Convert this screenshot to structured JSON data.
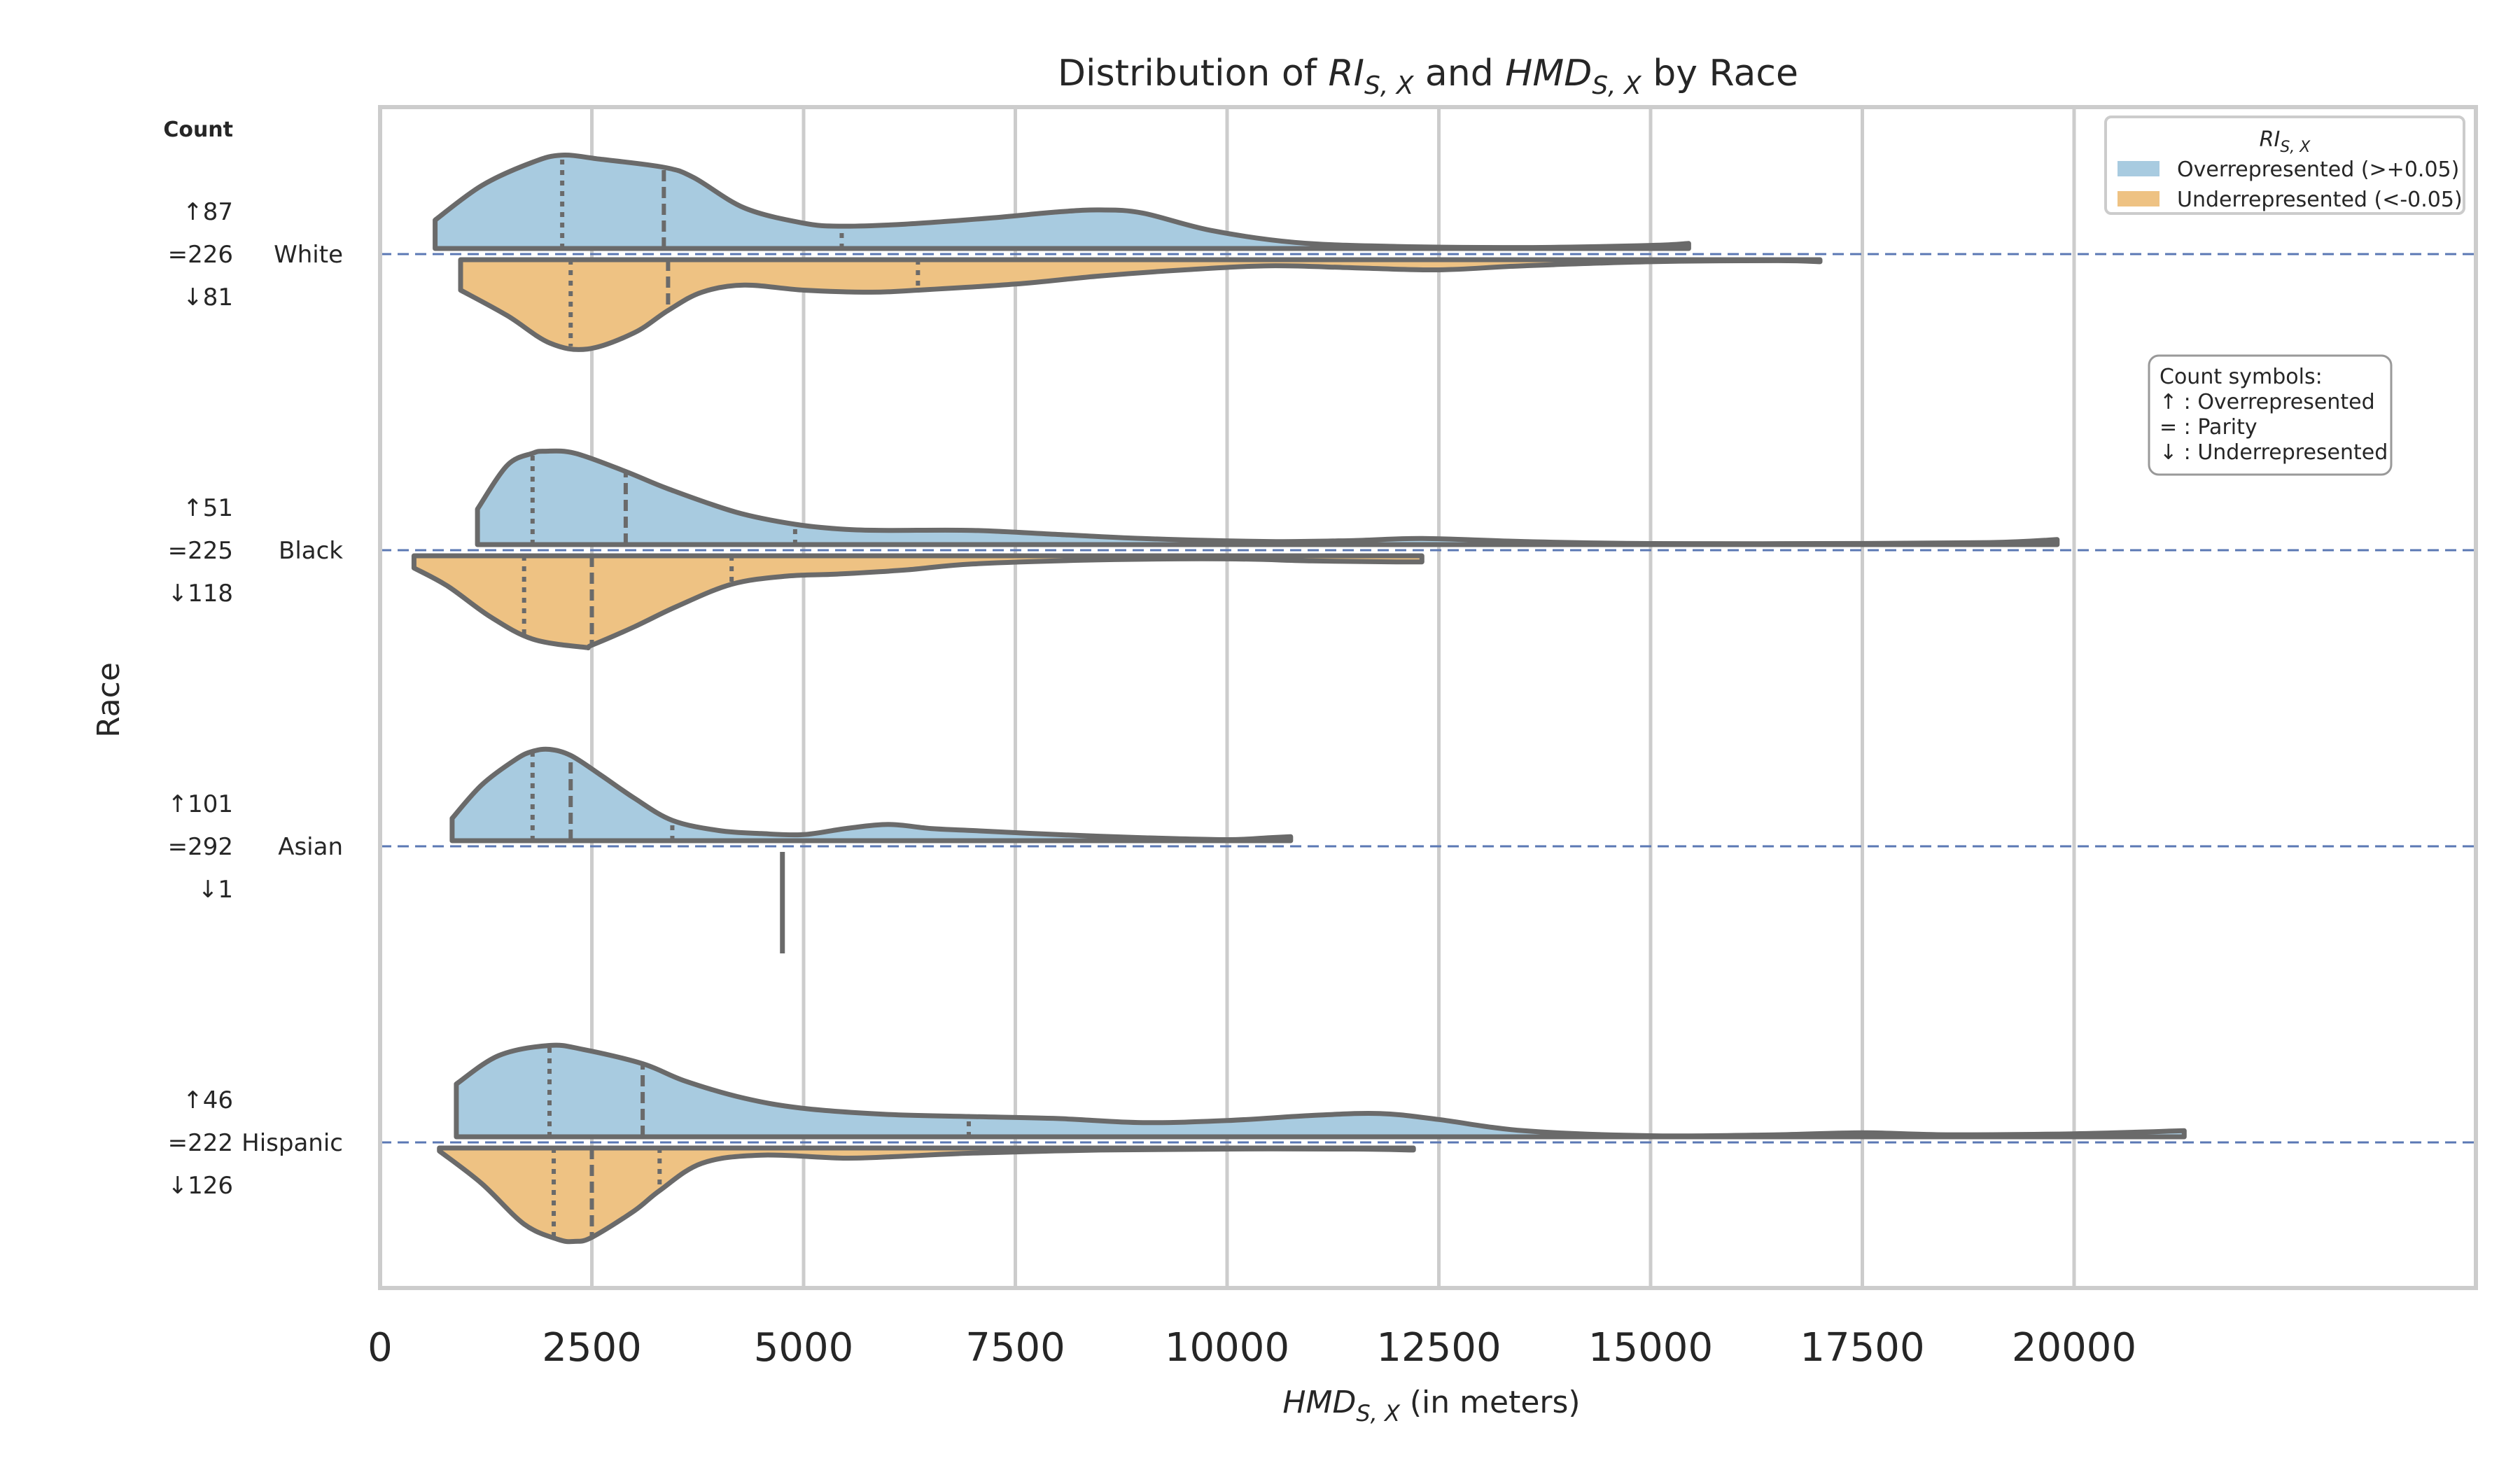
{
  "chart_data": {
    "type": "violin",
    "title": "Distribution of RI_{S,X} and HMD_{S,X} by Race",
    "title_parts": {
      "prefix": "Distribution of ",
      "var1": "RI",
      "var1_sub": "S, X",
      "mid": " and ",
      "var2": "HMD",
      "var2_sub": "S, X",
      "suffix": " by Race"
    },
    "xlabel": {
      "var": "HMD",
      "sub": "S, X",
      "suffix": " (in meters)"
    },
    "ylabel": "Race",
    "xlim": [
      0,
      22400
    ],
    "xticks": [
      0,
      2500,
      5000,
      7500,
      10000,
      12500,
      15000,
      17500,
      20000
    ],
    "grid": "vertical",
    "count_header": "Count",
    "categories": [
      "White",
      "Black",
      "Asian",
      "Hispanic"
    ],
    "counts": [
      {
        "up": "↑87",
        "eq": "=226",
        "down": "↓81"
      },
      {
        "up": "↑51",
        "eq": "=225",
        "down": "↓118"
      },
      {
        "up": "↑101",
        "eq": "=292",
        "down": "↓1"
      },
      {
        "up": "↑46",
        "eq": "=222",
        "down": "↓126"
      }
    ],
    "series": [
      {
        "name": "Overrepresented (>+0.05)",
        "color": "#a8cbe0",
        "side": "upper",
        "groups": [
          {
            "category": "White",
            "min": 650,
            "max": 15450,
            "quartiles": [
              2150,
              3350,
              5450
            ],
            "density": [
              [
                650,
                0.28
              ],
              [
                1200,
                0.62
              ],
              [
                1800,
                0.85
              ],
              [
                2150,
                0.92
              ],
              [
                2600,
                0.88
              ],
              [
                3350,
                0.8
              ],
              [
                3700,
                0.7
              ],
              [
                4300,
                0.4
              ],
              [
                5000,
                0.25
              ],
              [
                5450,
                0.22
              ],
              [
                6200,
                0.24
              ],
              [
                7200,
                0.3
              ],
              [
                8000,
                0.36
              ],
              [
                8500,
                0.38
              ],
              [
                9000,
                0.35
              ],
              [
                9800,
                0.18
              ],
              [
                10800,
                0.06
              ],
              [
                12000,
                0.02
              ],
              [
                13500,
                0.01
              ],
              [
                15000,
                0.03
              ],
              [
                15450,
                0.05
              ]
            ]
          },
          {
            "category": "Black",
            "min": 1150,
            "max": 19800,
            "quartiles": [
              1800,
              2900,
              4900
            ],
            "density": [
              [
                1150,
                0.35
              ],
              [
                1500,
                0.78
              ],
              [
                1800,
                0.9
              ],
              [
                1950,
                0.92
              ],
              [
                2300,
                0.9
              ],
              [
                2900,
                0.72
              ],
              [
                3400,
                0.55
              ],
              [
                4200,
                0.32
              ],
              [
                4900,
                0.2
              ],
              [
                5500,
                0.15
              ],
              [
                6000,
                0.14
              ],
              [
                7000,
                0.14
              ],
              [
                8000,
                0.1
              ],
              [
                9000,
                0.06
              ],
              [
                10500,
                0.03
              ],
              [
                11500,
                0.04
              ],
              [
                12300,
                0.06
              ],
              [
                13500,
                0.03
              ],
              [
                15000,
                0.01
              ],
              [
                17000,
                0.01
              ],
              [
                19000,
                0.02
              ],
              [
                19800,
                0.05
              ]
            ]
          },
          {
            "category": "Asian",
            "min": 850,
            "max": 10750,
            "quartiles": [
              1800,
              2250,
              3450
            ],
            "density": [
              [
                850,
                0.22
              ],
              [
                1200,
                0.55
              ],
              [
                1600,
                0.8
              ],
              [
                1800,
                0.88
              ],
              [
                2000,
                0.9
              ],
              [
                2250,
                0.84
              ],
              [
                2600,
                0.65
              ],
              [
                3000,
                0.42
              ],
              [
                3450,
                0.2
              ],
              [
                4000,
                0.1
              ],
              [
                4500,
                0.07
              ],
              [
                5000,
                0.06
              ],
              [
                5500,
                0.12
              ],
              [
                6000,
                0.16
              ],
              [
                6500,
                0.12
              ],
              [
                7000,
                0.1
              ],
              [
                8000,
                0.06
              ],
              [
                9000,
                0.03
              ],
              [
                10000,
                0.01
              ],
              [
                10500,
                0.03
              ],
              [
                10750,
                0.04
              ]
            ]
          },
          {
            "category": "Hispanic",
            "min": 900,
            "max": 21300,
            "quartiles": [
              2000,
              3100,
              6950
            ],
            "density": [
              [
                900,
                0.52
              ],
              [
                1400,
                0.8
              ],
              [
                2000,
                0.9
              ],
              [
                2400,
                0.86
              ],
              [
                3100,
                0.72
              ],
              [
                3600,
                0.55
              ],
              [
                4300,
                0.38
              ],
              [
                5000,
                0.28
              ],
              [
                6000,
                0.22
              ],
              [
                6950,
                0.2
              ],
              [
                8000,
                0.18
              ],
              [
                9000,
                0.14
              ],
              [
                10000,
                0.16
              ],
              [
                11000,
                0.21
              ],
              [
                11800,
                0.23
              ],
              [
                12500,
                0.17
              ],
              [
                13500,
                0.06
              ],
              [
                15000,
                0.01
              ],
              [
                16500,
                0.02
              ],
              [
                17500,
                0.04
              ],
              [
                18500,
                0.02
              ],
              [
                20000,
                0.03
              ],
              [
                21300,
                0.06
              ]
            ]
          }
        ]
      },
      {
        "name": "Underrepresented (<-0.05)",
        "color": "#eec283",
        "side": "lower",
        "groups": [
          {
            "category": "White",
            "min": 950,
            "max": 17000,
            "quartiles": [
              2250,
              3400,
              6350
            ],
            "density": [
              [
                950,
                0.3
              ],
              [
                1500,
                0.55
              ],
              [
                2000,
                0.82
              ],
              [
                2450,
                0.88
              ],
              [
                3000,
                0.72
              ],
              [
                3400,
                0.5
              ],
              [
                3800,
                0.32
              ],
              [
                4300,
                0.25
              ],
              [
                5000,
                0.3
              ],
              [
                5800,
                0.32
              ],
              [
                6350,
                0.3
              ],
              [
                7500,
                0.24
              ],
              [
                8500,
                0.16
              ],
              [
                9500,
                0.1
              ],
              [
                10500,
                0.06
              ],
              [
                11500,
                0.08
              ],
              [
                12500,
                0.1
              ],
              [
                13500,
                0.06
              ],
              [
                15000,
                0.02
              ],
              [
                16500,
                0.01
              ],
              [
                17000,
                0.02
              ]
            ]
          },
          {
            "category": "Black",
            "min": 400,
            "max": 12300,
            "quartiles": [
              1700,
              2500,
              4150
            ],
            "density": [
              [
                400,
                0.12
              ],
              [
                800,
                0.3
              ],
              [
                1300,
                0.6
              ],
              [
                1800,
                0.82
              ],
              [
                2400,
                0.9
              ],
              [
                2500,
                0.88
              ],
              [
                3000,
                0.7
              ],
              [
                3500,
                0.5
              ],
              [
                4150,
                0.28
              ],
              [
                4800,
                0.2
              ],
              [
                5400,
                0.18
              ],
              [
                6200,
                0.14
              ],
              [
                7000,
                0.08
              ],
              [
                8500,
                0.04
              ],
              [
                10000,
                0.03
              ],
              [
                11000,
                0.05
              ],
              [
                12000,
                0.06
              ],
              [
                12300,
                0.06
              ]
            ]
          },
          {
            "category": "Asian",
            "min": 4750,
            "max": 4750,
            "quartiles": [],
            "density": [
              [
                4750,
                1.0
              ]
            ]
          },
          {
            "category": "Hispanic",
            "min": 700,
            "max": 12200,
            "quartiles": [
              2050,
              2500,
              3300
            ],
            "density": [
              [
                700,
                0.03
              ],
              [
                1200,
                0.35
              ],
              [
                1700,
                0.75
              ],
              [
                2100,
                0.9
              ],
              [
                2300,
                0.92
              ],
              [
                2500,
                0.88
              ],
              [
                3000,
                0.62
              ],
              [
                3300,
                0.42
              ],
              [
                3800,
                0.15
              ],
              [
                4500,
                0.07
              ],
              [
                5500,
                0.1
              ],
              [
                6200,
                0.08
              ],
              [
                7000,
                0.05
              ],
              [
                8500,
                0.02
              ],
              [
                10000,
                0.01
              ],
              [
                11500,
                0.01
              ],
              [
                12200,
                0.02
              ]
            ]
          }
        ]
      }
    ],
    "legend": {
      "title": "RI",
      "title_sub": "S, X",
      "placement": "top-right",
      "items": [
        "Overrepresented (>+0.05)",
        "Underrepresented (<-0.05)"
      ]
    },
    "symbols_box": {
      "lines": [
        "Count symbols:",
        "↑ : Overrepresented",
        "= : Parity",
        "↓ : Underrepresented"
      ]
    },
    "colors": {
      "baseline": "#5b78b4",
      "outline": "#6a6a6a",
      "grid": "#cccccc",
      "frame": "#cccccc"
    }
  }
}
